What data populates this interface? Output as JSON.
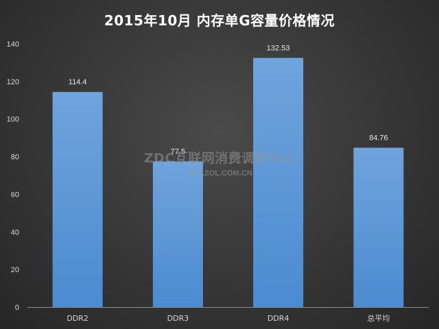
{
  "chart_data": {
    "type": "bar",
    "title": "2015年10月  内存单G容量价格情况",
    "categories": [
      "DDR2",
      "DDR3",
      "DDR4",
      "总平均"
    ],
    "values": [
      114.4,
      77.5,
      132.53,
      84.76
    ],
    "data_labels": [
      "114.4",
      "77.5",
      "132.53",
      "84.76"
    ],
    "ylim": [
      0,
      140
    ],
    "yticks": [
      0,
      20,
      40,
      60,
      80,
      100,
      120,
      140
    ],
    "grid": false,
    "legend": "none",
    "bar_color_top": "#6fa4dc",
    "bar_color_bottom": "#4b8bd0"
  },
  "watermark": {
    "main": "ZDC互联网消费调研中心",
    "sub": "ZDC.ZOL.COM.CN"
  }
}
